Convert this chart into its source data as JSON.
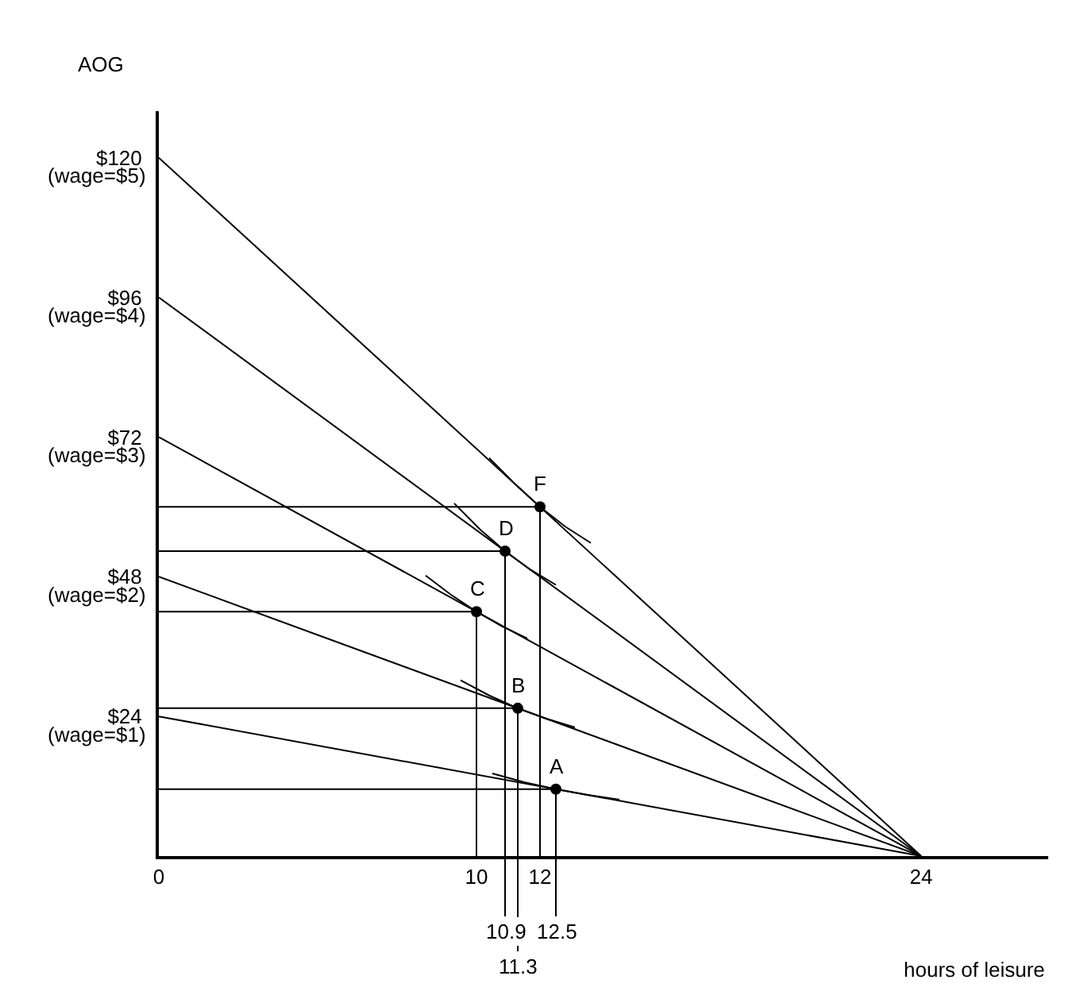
{
  "chart_data": {
    "type": "line",
    "xlabel": "hours of leisure",
    "ylabel": "AOG",
    "xlim": [
      0,
      28
    ],
    "ylim": [
      0,
      128
    ],
    "xticks": [
      0,
      10,
      12,
      24
    ],
    "yticks": [
      {
        "value": 24,
        "label": "$24"
      },
      {
        "value": 48,
        "label": "$48"
      },
      {
        "value": 72,
        "label": "$72"
      },
      {
        "value": 96,
        "label": "$96"
      },
      {
        "value": 120,
        "label": "$120"
      }
    ],
    "marker": "none",
    "line_style": "solid",
    "series": [
      {
        "color": "#000000",
        "x": [
          0,
          24
        ],
        "values": [
          24,
          0
        ]
      },
      {
        "color": "#000000",
        "x": [
          0,
          24
        ],
        "values": [
          48,
          0
        ]
      },
      {
        "color": "#000000",
        "x": [
          0,
          24
        ],
        "values": [
          72,
          0
        ]
      },
      {
        "color": "#000000",
        "x": [
          0,
          24
        ],
        "values": [
          96,
          0
        ]
      },
      {
        "color": "#000000",
        "x": [
          0,
          24
        ],
        "values": [
          120,
          0
        ]
      },
      {
        "color": "#000000",
        "x": [
          10.5,
          11.5,
          12.5,
          13.5,
          14.5
        ],
        "values": [
          14.2,
          12.7,
          11.5,
          10.5,
          9.7
        ]
      },
      {
        "color": "#000000",
        "x": [
          9.5,
          10.4,
          11.3,
          12.2,
          13.1
        ],
        "values": [
          30.2,
          27.6,
          25.4,
          23.6,
          22.1
        ]
      },
      {
        "color": "#000000",
        "x": [
          8.4,
          9.2,
          10,
          10.8,
          11.6
        ],
        "values": [
          48.2,
          44.9,
          42,
          39.5,
          37.4
        ]
      },
      {
        "color": "#000000",
        "x": [
          9.3,
          10.1,
          10.9,
          11.7,
          12.5
        ],
        "values": [
          60.6,
          56.2,
          52.4,
          49.2,
          46.6
        ]
      },
      {
        "color": "#000000",
        "x": [
          10.4,
          11.2,
          12,
          12.8,
          13.6
        ],
        "values": [
          68.4,
          64,
          60,
          56.6,
          53.8
        ]
      },
      {
        "color": "#000000",
        "x": [
          0,
          12.5,
          12.5
        ],
        "values": [
          11.5,
          11.5,
          0
        ]
      },
      {
        "color": "#000000",
        "x": [
          0,
          11.3,
          11.3
        ],
        "values": [
          25.4,
          25.4,
          0
        ]
      },
      {
        "color": "#000000",
        "x": [
          0,
          10,
          10
        ],
        "values": [
          42,
          42,
          0
        ]
      },
      {
        "color": "#000000",
        "x": [
          0,
          10.9,
          10.9
        ],
        "values": [
          52.4,
          52.4,
          0
        ]
      },
      {
        "color": "#000000",
        "x": [
          0,
          12,
          12
        ],
        "values": [
          60,
          60,
          0
        ]
      },
      {
        "type": "scatter",
        "marker": "circle",
        "color": "#000000",
        "x": [
          12.5,
          11.3,
          10,
          10.9,
          12
        ],
        "values": [
          11.5,
          25.4,
          42,
          52.4,
          60
        ]
      }
    ],
    "annotations": [
      {
        "text": "10.9",
        "x": 10.9,
        "y": 0
      },
      {
        "text": "11.3",
        "x": 11.3,
        "y": 0
      },
      {
        "text": "12.5",
        "x": 12.5,
        "y": 0
      },
      {
        "text": "A",
        "x": 12.5,
        "y": 11.5
      },
      {
        "text": "B",
        "x": 11.3,
        "y": 25.4
      },
      {
        "text": "C",
        "x": 10,
        "y": 42
      },
      {
        "text": "D",
        "x": 10.9,
        "y": 52.4
      },
      {
        "text": "F",
        "x": 12,
        "y": 60
      },
      {
        "text": "(wage=$1)",
        "x": 0,
        "y": 24
      },
      {
        "text": "(wage=$2)",
        "x": 0,
        "y": 48
      },
      {
        "text": "(wage=$3)",
        "x": 0,
        "y": 72
      },
      {
        "text": "(wage=$4)",
        "x": 0,
        "y": 96
      },
      {
        "text": "(wage=$5)",
        "x": 0,
        "y": 120
      }
    ]
  }
}
